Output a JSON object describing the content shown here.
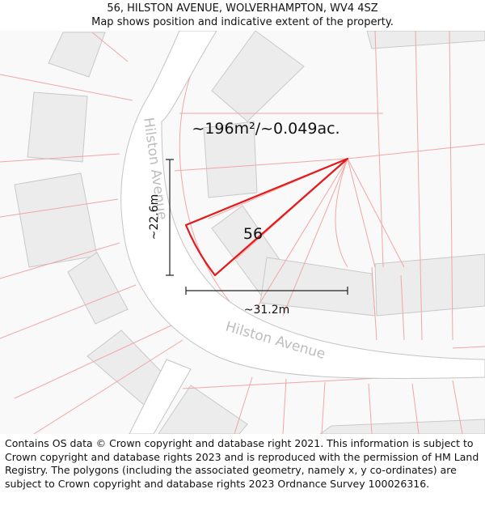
{
  "header": {
    "address": "56, HILSTON AVENUE, WOLVERHAMPTON, WV4 4SZ",
    "subtitle": "Map shows position and indicative extent of the property."
  },
  "map": {
    "area_label": "~196m²/~0.049ac.",
    "plot_number": "56",
    "height_measure": "~22.6m",
    "width_measure": "~31.2m",
    "street_name_1": "Hilston Avenue",
    "street_name_2": "Hilston Avenue",
    "colors": {
      "background": "#f9f9f9",
      "building_fill": "#ececec",
      "building_stroke": "#c9c9c9",
      "parcel_line": "#f2a6a6",
      "road_fill": "#ffffff",
      "road_edge": "#c4c4c4",
      "plot_outline": "#e31a1c",
      "street_label": "#bdbdbd"
    }
  },
  "footer": {
    "attribution": "Contains OS data © Crown copyright and database right 2021. This information is subject to Crown copyright and database rights 2023 and is reproduced with the permission of HM Land Registry. The polygons (including the associated geometry, namely x, y co-ordinates) are subject to Crown copyright and database rights 2023 Ordnance Survey 100026316."
  }
}
